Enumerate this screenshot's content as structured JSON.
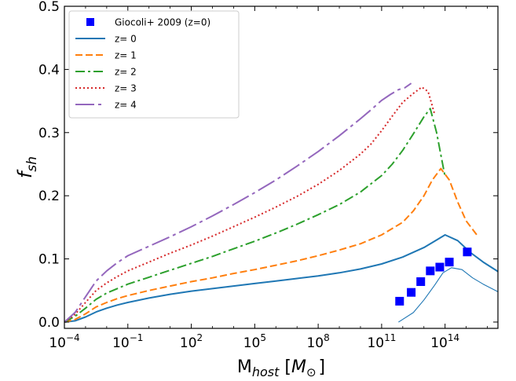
{
  "chart_data": {
    "type": "line",
    "xlabel": {
      "base": "M",
      "sub": "host",
      "unit_open": "[",
      "unit_sym": "M",
      "unit_sub": "⊙",
      "unit_close": "]"
    },
    "ylabel": {
      "base": "f",
      "sub": "sh"
    },
    "x_scale": "log10",
    "xlim_log10": [
      -4,
      16.5
    ],
    "ylim": [
      -0.01,
      0.5
    ],
    "x_ticks": [
      {
        "log10": -4,
        "base": "10",
        "exp": "−4"
      },
      {
        "log10": -1,
        "base": "10",
        "exp": "−1"
      },
      {
        "log10": 2,
        "base": "10",
        "exp": "2"
      },
      {
        "log10": 5,
        "base": "10",
        "exp": "5"
      },
      {
        "log10": 8,
        "base": "10",
        "exp": "8"
      },
      {
        "log10": 11,
        "base": "10",
        "exp": "11"
      },
      {
        "log10": 14,
        "base": "10",
        "exp": "14"
      }
    ],
    "y_ticks": [
      {
        "value": 0.0,
        "label": "0.0"
      },
      {
        "value": 0.1,
        "label": "0.1"
      },
      {
        "value": 0.2,
        "label": "0.2"
      },
      {
        "value": 0.3,
        "label": "0.3"
      },
      {
        "value": 0.4,
        "label": "0.4"
      },
      {
        "value": 0.5,
        "label": "0.5"
      }
    ],
    "grid": false,
    "legend_position": "upper-left",
    "scatter": {
      "name": "Giocoli+ 2009 (z=0)",
      "color": "#0000ff",
      "marker": "square",
      "log10_x": [
        11.85,
        12.4,
        12.85,
        13.3,
        13.75,
        14.2,
        15.05
      ],
      "y": [
        0.033,
        0.047,
        0.064,
        0.081,
        0.087,
        0.095,
        0.111
      ]
    },
    "series": [
      {
        "name": "z= 0",
        "color": "#1f77b4",
        "dash": "",
        "log10_x": [
          -4,
          -3.5,
          -3,
          -2.5,
          -2,
          -1.5,
          -1,
          0,
          1,
          2,
          3,
          4,
          5,
          6,
          7,
          8,
          9,
          10,
          11,
          12,
          13,
          13.5,
          14,
          14.6,
          15.2,
          15.8,
          16.5
        ],
        "y": [
          0.0,
          0.002,
          0.008,
          0.016,
          0.022,
          0.027,
          0.031,
          0.038,
          0.044,
          0.049,
          0.053,
          0.057,
          0.061,
          0.065,
          0.069,
          0.073,
          0.078,
          0.084,
          0.092,
          0.103,
          0.118,
          0.128,
          0.138,
          0.129,
          0.11,
          0.095,
          0.08
        ]
      },
      {
        "name": "",
        "color": "#1f77b4",
        "dash": "",
        "thin": true,
        "log10_x": [
          11.8,
          12.5,
          13.0,
          13.5,
          13.9,
          14.3,
          14.8,
          15.3,
          15.8,
          16.5
        ],
        "y": [
          0.0,
          0.015,
          0.035,
          0.058,
          0.078,
          0.086,
          0.083,
          0.07,
          0.06,
          0.048
        ]
      },
      {
        "name": "z= 1",
        "color": "#ff7f0e",
        "dash": "9,4",
        "log10_x": [
          -4,
          -3.5,
          -3,
          -2.5,
          -2,
          -1.5,
          -1,
          0,
          1,
          2,
          3,
          4,
          5,
          6,
          7,
          8,
          9,
          10,
          11,
          12,
          12.5,
          13,
          13.4,
          13.8,
          14.2,
          14.6,
          15.0,
          15.5
        ],
        "y": [
          0.0,
          0.004,
          0.013,
          0.024,
          0.031,
          0.037,
          0.042,
          0.05,
          0.057,
          0.064,
          0.07,
          0.077,
          0.083,
          0.09,
          0.097,
          0.105,
          0.114,
          0.124,
          0.138,
          0.158,
          0.176,
          0.2,
          0.225,
          0.243,
          0.225,
          0.19,
          0.16,
          0.138
        ]
      },
      {
        "name": "z= 2",
        "color": "#2ca02c",
        "dash": "12,4,3,4",
        "log10_x": [
          -4,
          -3.5,
          -3,
          -2.5,
          -2,
          -1.5,
          -1,
          0,
          1,
          2,
          3,
          4,
          5,
          6,
          7,
          8,
          9,
          10,
          11,
          11.5,
          12,
          12.5,
          13.0,
          13.3,
          13.6,
          14.0
        ],
        "y": [
          0.0,
          0.009,
          0.022,
          0.036,
          0.046,
          0.053,
          0.06,
          0.071,
          0.082,
          0.093,
          0.104,
          0.116,
          0.128,
          0.141,
          0.155,
          0.17,
          0.186,
          0.206,
          0.232,
          0.25,
          0.272,
          0.298,
          0.325,
          0.338,
          0.3,
          0.23
        ]
      },
      {
        "name": "z= 3",
        "color": "#d62728",
        "dash": "2,3",
        "log10_x": [
          -4,
          -3.5,
          -3,
          -2.5,
          -2,
          -1.5,
          -1,
          0,
          1,
          2,
          3,
          4,
          5,
          6,
          7,
          8,
          9,
          10,
          10.5,
          11,
          11.5,
          12,
          12.5,
          12.9,
          13.2,
          13.5
        ],
        "y": [
          0.0,
          0.012,
          0.031,
          0.05,
          0.062,
          0.072,
          0.081,
          0.095,
          0.109,
          0.122,
          0.136,
          0.151,
          0.166,
          0.182,
          0.199,
          0.218,
          0.24,
          0.266,
          0.282,
          0.303,
          0.326,
          0.348,
          0.362,
          0.372,
          0.365,
          0.33
        ]
      },
      {
        "name": "z= 4",
        "color": "#9467bd",
        "dash": "24,5,4,5",
        "log10_x": [
          -4,
          -3.5,
          -3,
          -2.5,
          -2,
          -1.5,
          -1,
          0,
          1,
          2,
          3,
          4,
          5,
          6,
          7,
          8,
          9,
          10,
          10.5,
          11,
          11.4,
          11.8,
          12.1,
          12.4
        ],
        "y": [
          0.0,
          0.015,
          0.04,
          0.065,
          0.081,
          0.094,
          0.105,
          0.12,
          0.135,
          0.151,
          0.168,
          0.186,
          0.205,
          0.225,
          0.247,
          0.27,
          0.295,
          0.322,
          0.336,
          0.351,
          0.36,
          0.368,
          0.371,
          0.378
        ]
      }
    ]
  }
}
